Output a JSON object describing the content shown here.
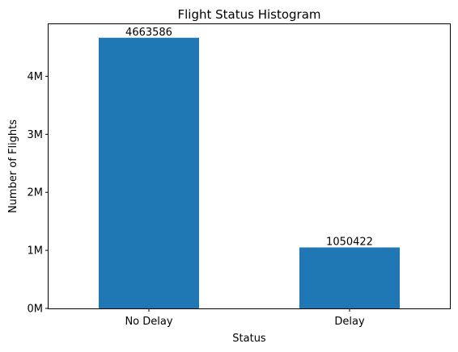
{
  "chart_data": {
    "type": "bar",
    "title": "Flight Status Histogram",
    "xlabel": "Status",
    "ylabel": "Number of Flights",
    "categories": [
      "No Delay",
      "Delay"
    ],
    "values": [
      4663586,
      1050422
    ],
    "data_labels": [
      "4663586",
      "1050422"
    ],
    "ylim": [
      0,
      4896765
    ],
    "yticks": [
      0,
      1000000,
      2000000,
      3000000,
      4000000
    ],
    "ytick_labels": [
      "0M",
      "1M",
      "2M",
      "3M",
      "4M"
    ],
    "bar_color": "#1f77b4",
    "grid": false,
    "legend": "none"
  }
}
